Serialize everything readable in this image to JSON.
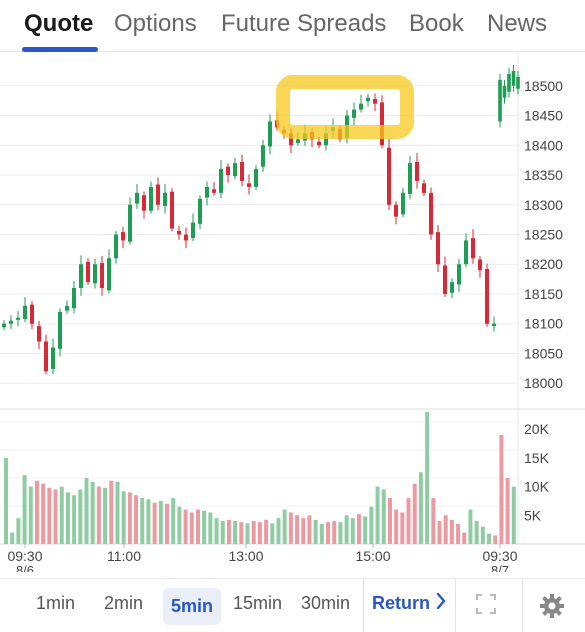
{
  "tabs": [
    {
      "label": "Quote",
      "active": true
    },
    {
      "label": "Options",
      "active": false
    },
    {
      "label": "Future Spreads",
      "active": false
    },
    {
      "label": "Book",
      "active": false
    },
    {
      "label": "News",
      "active": false
    }
  ],
  "timeframes": [
    {
      "label": "1min",
      "active": false
    },
    {
      "label": "2min",
      "active": false
    },
    {
      "label": "5min",
      "active": true
    },
    {
      "label": "15min",
      "active": false
    },
    {
      "label": "30min",
      "active": false
    }
  ],
  "return_label": "Return",
  "icons": {
    "fullscreen": "fullscreen-icon",
    "settings": "gear-icon",
    "return": "chevron-right-icon"
  },
  "colors": {
    "up": "#1f9d55",
    "down": "#d62a38",
    "vol_up": "#8fcca4",
    "vol_down": "#ec9aa2",
    "accent": "#2a56c6",
    "highlight": "#f7c81c"
  },
  "chart_data": {
    "type": "candlestick",
    "price_axis": {
      "ticks": [
        "18500",
        "18450",
        "18400",
        "18350",
        "18300",
        "18250",
        "18200",
        "18150",
        "18100",
        "18050",
        "18000"
      ],
      "range": [
        17960,
        18540
      ]
    },
    "volume_axis": {
      "ticks": [
        "20K",
        "15K",
        "10K",
        "5K"
      ],
      "range": [
        0,
        23000
      ]
    },
    "time_ticks": [
      {
        "label": "09:30",
        "sublabel": "8/6"
      },
      {
        "label": "11:00",
        "sublabel": ""
      },
      {
        "label": "13:00",
        "sublabel": ""
      },
      {
        "label": "15:00",
        "sublabel": ""
      },
      {
        "label": "09:30",
        "sublabel": "8/7"
      }
    ],
    "close_path": [
      18100,
      18105,
      18110,
      18130,
      18100,
      18070,
      18020,
      18060,
      18120,
      18130,
      18160,
      18200,
      18170,
      18200,
      18160,
      18210,
      18250,
      18240,
      18300,
      18320,
      18290,
      18330,
      18300,
      18320,
      18260,
      18250,
      18240,
      18270,
      18310,
      18330,
      18320,
      18360,
      18350,
      18370,
      18340,
      18330,
      18360,
      18400,
      18440,
      18430,
      18420,
      18400,
      18410,
      18420,
      18410,
      18400,
      18420,
      18430,
      18410,
      18450,
      18460,
      18470,
      18480,
      18470,
      18400,
      18300,
      18280,
      18320,
      18370,
      18340,
      18320,
      18250,
      18200,
      18150,
      18170,
      18200,
      18240,
      18210,
      18190,
      18100,
      18100
    ],
    "volumes": [
      15000,
      2000,
      4500,
      12000,
      10000,
      11000,
      10500,
      9800,
      9500,
      10000,
      9000,
      8500,
      9500,
      11500,
      10800,
      10000,
      9800,
      11000,
      10800,
      9200,
      9000,
      8500,
      8000,
      7800,
      7200,
      7500,
      7000,
      8000,
      6500,
      6000,
      5500,
      6000,
      5800,
      5500,
      4500,
      4000,
      4200,
      4000,
      3800,
      3600,
      4000,
      3800,
      4200,
      3600,
      4500,
      6000,
      5500,
      5000,
      4500,
      5000,
      4200,
      3500,
      3800,
      4000,
      3800,
      5000,
      4500,
      5200,
      4800,
      6500,
      10000,
      9500,
      8000,
      6000,
      5500,
      8000,
      10500,
      12500,
      23000,
      8000,
      4000,
      5000,
      4200,
      3500,
      2000,
      6000,
      4000,
      3000,
      1800,
      1500,
      19000,
      11500,
      10000
    ]
  }
}
